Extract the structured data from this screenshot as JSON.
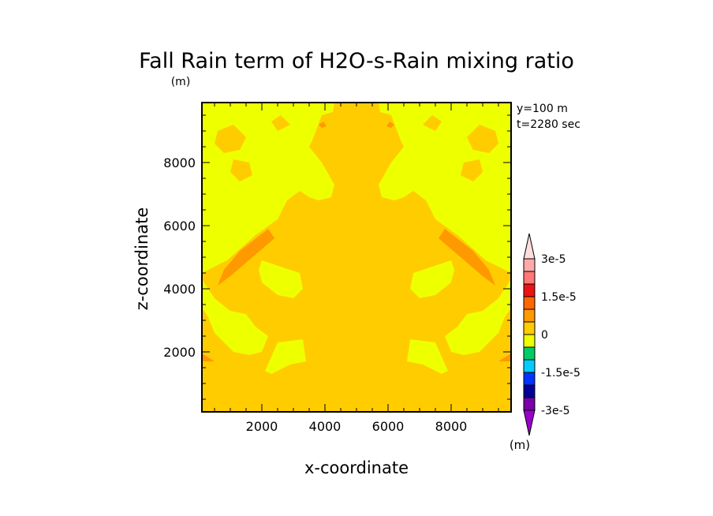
{
  "chart_data": {
    "type": "heatmap",
    "title": "Fall Rain term of H2O-s-Rain mixing ratio",
    "title_units": "(m)",
    "xlabel": "x-coordinate",
    "ylabel": "z-coordinate",
    "xlim": [
      100,
      9900
    ],
    "ylim": [
      100,
      9900
    ],
    "x_ticks": [
      2000,
      4000,
      6000,
      8000
    ],
    "x_tick_labels": [
      "2000",
      "4000",
      "6000",
      "8000"
    ],
    "y_ticks": [
      2000,
      4000,
      6000,
      8000
    ],
    "y_tick_labels": [
      "2000",
      "4000",
      "6000",
      "8000"
    ],
    "annotations": [
      "y=100 m",
      "t=2280 sec"
    ],
    "background_level_color": "#ffcc00",
    "colorbar": {
      "units": "(m)",
      "levels": [
        -3e-05,
        -2.5e-05,
        -2e-05,
        -1.5e-05,
        -1e-05,
        -5e-06,
        0,
        5e-06,
        1e-05,
        1.5e-05,
        2e-05,
        2.5e-05,
        3e-05
      ],
      "colors": [
        "#9900cc",
        "#7a00a8",
        "#000099",
        "#0033ff",
        "#00ccff",
        "#00cc66",
        "#eeff00",
        "#ffcc00",
        "#ff9900",
        "#ff6600",
        "#ee1111",
        "#ff7777",
        "#ffaaaa",
        "#ffdddd"
      ],
      "tick_labels": [
        {
          "value": 3e-05,
          "label": "3e-5"
        },
        {
          "value": 1.5e-05,
          "label": "1.5e-5"
        },
        {
          "value": 0,
          "label": "0"
        },
        {
          "value": -1.5e-05,
          "label": "-1.5e-5"
        },
        {
          "value": -3e-05,
          "label": "-3e-5"
        }
      ]
    },
    "regions": [
      {
        "name": "upper-left-yellow",
        "color": "#eeff00",
        "points": [
          [
            100,
            9900
          ],
          [
            4300,
            9900
          ],
          [
            4250,
            9600
          ],
          [
            3900,
            9500
          ],
          [
            3600,
            8700
          ],
          [
            3500,
            8500
          ],
          [
            3900,
            8000
          ],
          [
            4300,
            7300
          ],
          [
            4200,
            6900
          ],
          [
            3800,
            6800
          ],
          [
            3500,
            6900
          ],
          [
            3200,
            7100
          ],
          [
            2800,
            6800
          ],
          [
            2500,
            6200
          ],
          [
            1800,
            5700
          ],
          [
            900,
            4900
          ],
          [
            100,
            4500
          ]
        ]
      },
      {
        "name": "lower-left-yellow-blob",
        "color": "#eeff00",
        "points": [
          [
            100,
            4300
          ],
          [
            500,
            3700
          ],
          [
            1000,
            3300
          ],
          [
            1500,
            3200
          ],
          [
            1800,
            2800
          ],
          [
            2200,
            2500
          ],
          [
            2000,
            2000
          ],
          [
            1600,
            1900
          ],
          [
            1100,
            2000
          ],
          [
            800,
            2300
          ],
          [
            500,
            2600
          ],
          [
            300,
            3100
          ],
          [
            100,
            3400
          ]
        ]
      },
      {
        "name": "left-mid-yellow-blob",
        "color": "#eeff00",
        "points": [
          [
            2000,
            4900
          ],
          [
            3200,
            4500
          ],
          [
            3300,
            4000
          ],
          [
            3000,
            3700
          ],
          [
            2500,
            3800
          ],
          [
            2000,
            4200
          ],
          [
            1900,
            4600
          ]
        ]
      },
      {
        "name": "left-lower-yellow-blob",
        "color": "#eeff00",
        "points": [
          [
            2500,
            2300
          ],
          [
            3300,
            2400
          ],
          [
            3400,
            1700
          ],
          [
            2900,
            1600
          ],
          [
            2300,
            1300
          ],
          [
            2100,
            1400
          ]
        ]
      },
      {
        "name": "right-upper-yellow",
        "color": "#eeff00",
        "points": [
          [
            5700,
            9900
          ],
          [
            9900,
            9900
          ],
          [
            9900,
            4500
          ],
          [
            9100,
            4900
          ],
          [
            8200,
            5700
          ],
          [
            7500,
            6200
          ],
          [
            7200,
            6800
          ],
          [
            6800,
            7100
          ],
          [
            6500,
            6900
          ],
          [
            6200,
            6800
          ],
          [
            5800,
            6900
          ],
          [
            5700,
            7300
          ],
          [
            6100,
            8000
          ],
          [
            6500,
            8500
          ],
          [
            6400,
            8700
          ],
          [
            6100,
            9500
          ],
          [
            5750,
            9600
          ]
        ]
      },
      {
        "name": "right-lower-yellow-blob",
        "color": "#eeff00",
        "points": [
          [
            9900,
            4300
          ],
          [
            9500,
            3700
          ],
          [
            9000,
            3300
          ],
          [
            8500,
            3200
          ],
          [
            8200,
            2800
          ],
          [
            7800,
            2500
          ],
          [
            8000,
            2000
          ],
          [
            8400,
            1900
          ],
          [
            8900,
            2000
          ],
          [
            9200,
            2300
          ],
          [
            9500,
            2600
          ],
          [
            9700,
            3100
          ],
          [
            9900,
            3400
          ]
        ]
      },
      {
        "name": "right-mid-yellow-blob",
        "color": "#eeff00",
        "points": [
          [
            8000,
            4900
          ],
          [
            6800,
            4500
          ],
          [
            6700,
            4000
          ],
          [
            7000,
            3700
          ],
          [
            7500,
            3800
          ],
          [
            8000,
            4200
          ],
          [
            8100,
            4600
          ]
        ]
      },
      {
        "name": "right-lower-small-yellow",
        "color": "#eeff00",
        "points": [
          [
            7500,
            2300
          ],
          [
            6700,
            2400
          ],
          [
            6600,
            1700
          ],
          [
            7100,
            1600
          ],
          [
            7700,
            1300
          ],
          [
            7900,
            1400
          ]
        ]
      },
      {
        "name": "left-orange-streak",
        "color": "#ff9900",
        "points": [
          [
            600,
            4100
          ],
          [
            800,
            4600
          ],
          [
            1300,
            5200
          ],
          [
            2200,
            5900
          ],
          [
            2400,
            5600
          ],
          [
            1700,
            5000
          ],
          [
            1000,
            4400
          ]
        ]
      },
      {
        "name": "right-orange-streak",
        "color": "#ff9900",
        "points": [
          [
            9400,
            4100
          ],
          [
            9200,
            4600
          ],
          [
            8700,
            5200
          ],
          [
            7800,
            5900
          ],
          [
            7600,
            5600
          ],
          [
            8300,
            5000
          ],
          [
            9000,
            4400
          ]
        ]
      },
      {
        "name": "left-orange-spot",
        "color": "#ff9900",
        "points": [
          [
            100,
            1950
          ],
          [
            500,
            1700
          ],
          [
            100,
            1700
          ]
        ]
      },
      {
        "name": "right-orange-spot",
        "color": "#ff9900",
        "points": [
          [
            9900,
            1950
          ],
          [
            9500,
            1700
          ],
          [
            9900,
            1700
          ]
        ]
      },
      {
        "name": "left-top-orange-patch",
        "color": "#ffcc00",
        "points": [
          [
            600,
            9000
          ],
          [
            1100,
            9200
          ],
          [
            1500,
            8800
          ],
          [
            1300,
            8400
          ],
          [
            800,
            8300
          ],
          [
            500,
            8600
          ]
        ]
      },
      {
        "name": "right-top-orange-patch",
        "color": "#ffcc00",
        "points": [
          [
            9400,
            9000
          ],
          [
            8900,
            9200
          ],
          [
            8500,
            8800
          ],
          [
            8700,
            8400
          ],
          [
            9200,
            8300
          ],
          [
            9500,
            8600
          ]
        ]
      },
      {
        "name": "left-small-gold-blob",
        "color": "#ffcc00",
        "points": [
          [
            1100,
            8100
          ],
          [
            1600,
            8000
          ],
          [
            1700,
            7600
          ],
          [
            1300,
            7400
          ],
          [
            1000,
            7700
          ]
        ]
      },
      {
        "name": "right-small-gold-blob",
        "color": "#ffcc00",
        "points": [
          [
            8900,
            8100
          ],
          [
            8400,
            8000
          ],
          [
            8300,
            7600
          ],
          [
            8700,
            7400
          ],
          [
            9000,
            7700
          ]
        ]
      },
      {
        "name": "left-top-small-gold",
        "color": "#ffcc00",
        "points": [
          [
            2300,
            9300
          ],
          [
            2600,
            9500
          ],
          [
            2900,
            9200
          ],
          [
            2500,
            9000
          ]
        ]
      },
      {
        "name": "right-top-small-gold",
        "color": "#ffcc00",
        "points": [
          [
            7700,
            9300
          ],
          [
            7400,
            9500
          ],
          [
            7100,
            9200
          ],
          [
            7500,
            9000
          ]
        ]
      },
      {
        "name": "left-tiny-orange",
        "color": "#ff9900",
        "points": [
          [
            3800,
            9200
          ],
          [
            3950,
            9300
          ],
          [
            4050,
            9150
          ],
          [
            3900,
            9100
          ]
        ]
      },
      {
        "name": "right-tiny-orange",
        "color": "#ff9900",
        "points": [
          [
            6200,
            9200
          ],
          [
            6050,
            9300
          ],
          [
            5950,
            9150
          ],
          [
            6100,
            9100
          ]
        ]
      }
    ]
  }
}
